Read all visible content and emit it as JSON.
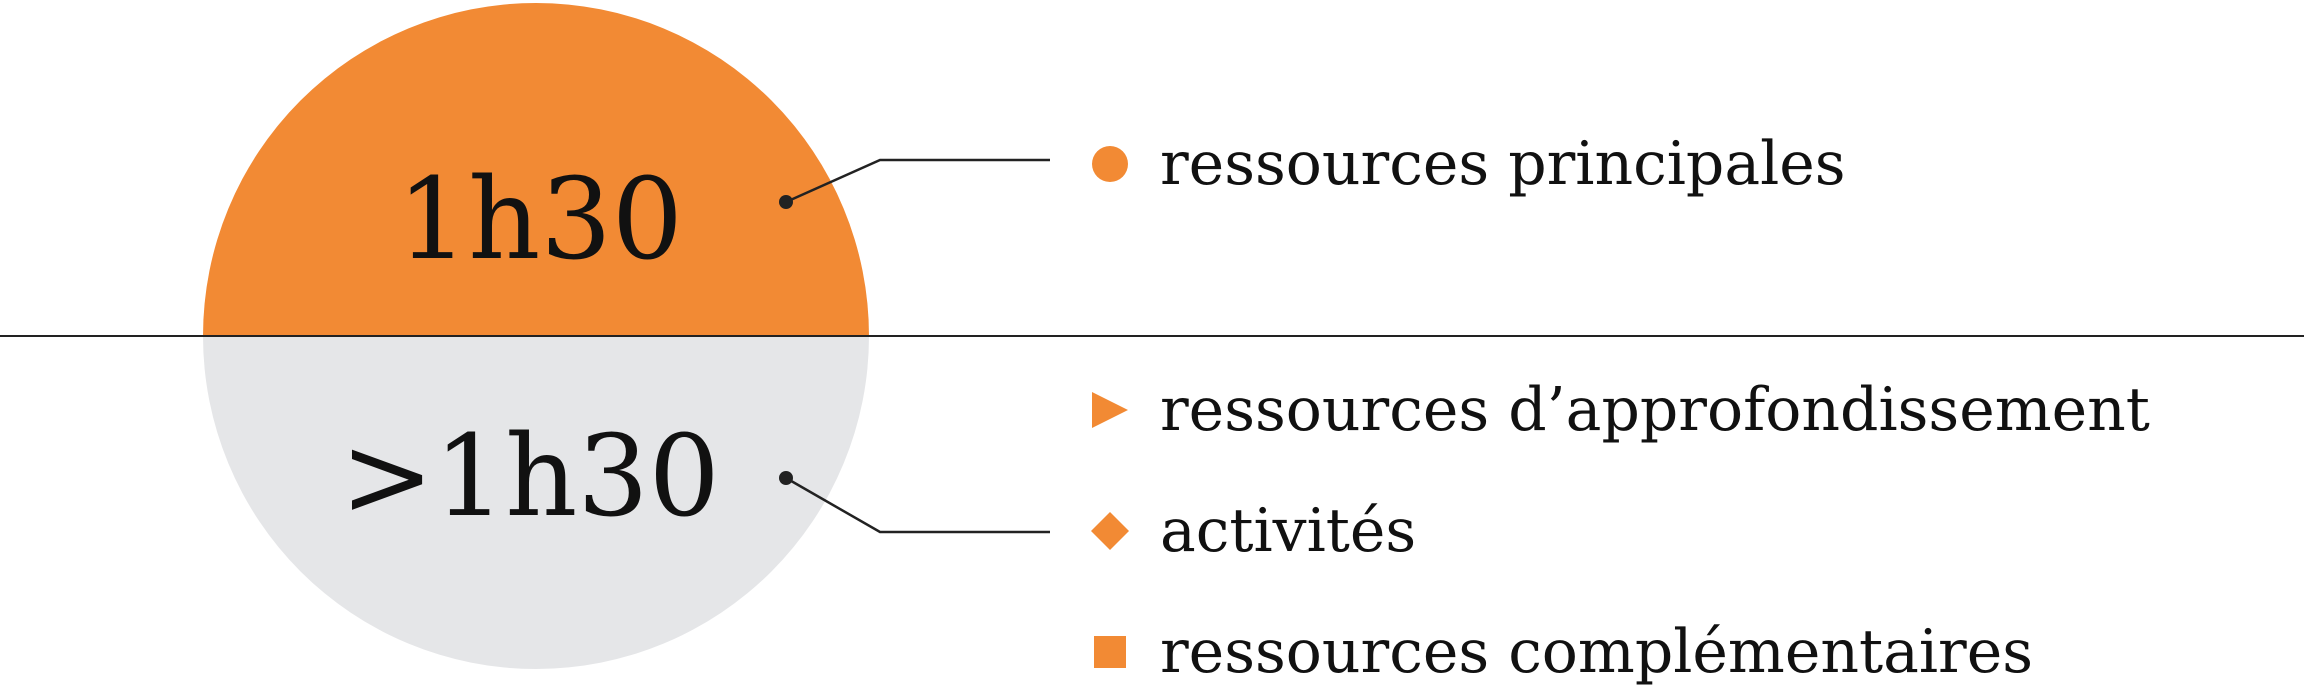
{
  "colors": {
    "orange": "#f28a34",
    "grey": "#e5e6e8",
    "line": "#222222"
  },
  "top_section": {
    "duration": "1h30"
  },
  "bottom_section": {
    "duration": ">1h30"
  },
  "legend": [
    {
      "icon": "circle-icon",
      "label": "ressources principales"
    },
    {
      "icon": "triangle-icon",
      "label": "ressources d’approfondissement"
    },
    {
      "icon": "diamond-icon",
      "label": "activités"
    },
    {
      "icon": "square-icon",
      "label": "ressources complémentaires"
    }
  ]
}
